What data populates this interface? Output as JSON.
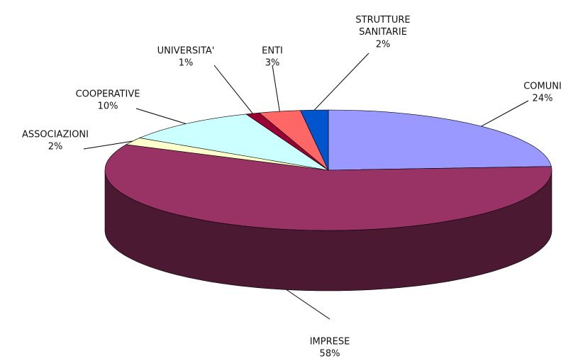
{
  "chart_data": {
    "type": "pie3d",
    "categories": [
      "COMUNI",
      "IMPRESE",
      "ASSOCIAZIONI",
      "COOPERATIVE",
      "UNIVERSITA'",
      "ENTI",
      "STRUTTURE SANITARIE"
    ],
    "values": [
      24,
      58,
      2,
      10,
      1,
      3,
      2
    ],
    "value_labels": [
      "24%",
      "58%",
      "2%",
      "10%",
      "1%",
      "3%",
      "2%"
    ],
    "colors": [
      "#9999ff",
      "#993366",
      "#ffffcc",
      "#ccffff",
      "#990033",
      "#ff6666",
      "#0055cc"
    ]
  }
}
